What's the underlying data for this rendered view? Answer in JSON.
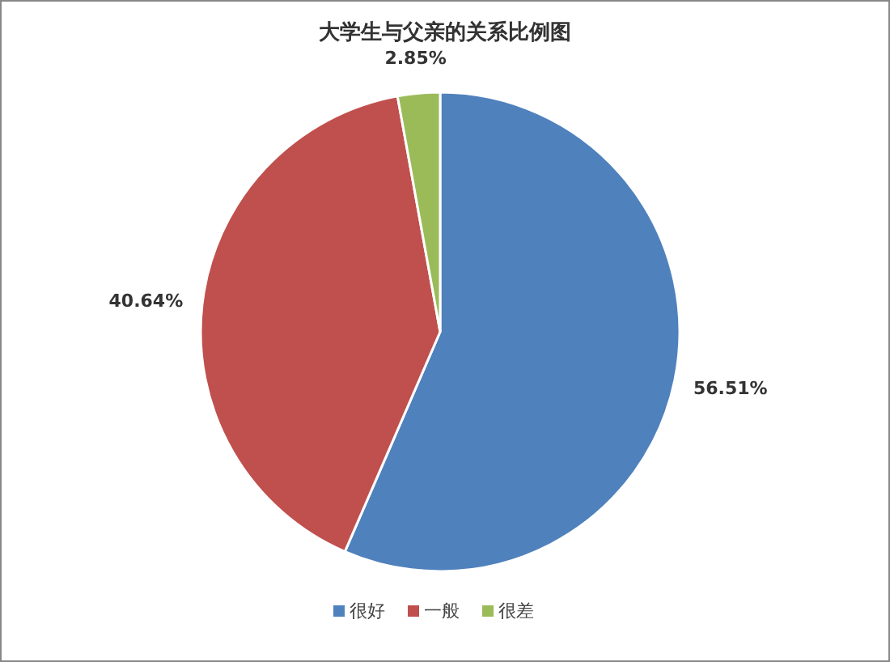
{
  "chart_data": {
    "type": "pie",
    "title": "大学生与父亲的关系比例图",
    "categories": [
      "很好",
      "一般",
      "很差"
    ],
    "values": [
      56.51,
      40.64,
      2.85
    ],
    "colors": [
      "#4f81bd",
      "#c0504d",
      "#9bbb59"
    ],
    "value_labels": [
      "56.51%",
      "40.64%",
      "2.85%"
    ],
    "legend": "bottom"
  }
}
